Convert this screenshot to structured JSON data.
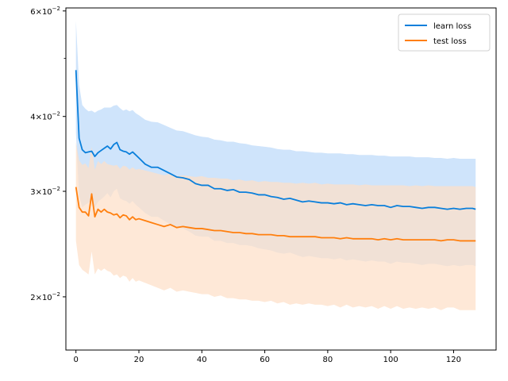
{
  "chart_data": {
    "type": "line",
    "title": "",
    "xlabel": "",
    "ylabel": "",
    "y_scale": "log",
    "xlim": [
      -3.2,
      133.5
    ],
    "ylim": [
      0.0163,
      0.0607
    ],
    "x_ticks": [
      0,
      20,
      40,
      60,
      80,
      100,
      120
    ],
    "x_tick_labels": [
      "0",
      "20",
      "40",
      "60",
      "80",
      "100",
      "120"
    ],
    "y_major_ticks": [
      {
        "value": 0.02,
        "mantissa": "2",
        "base": "10",
        "exp": "−2"
      },
      {
        "value": 0.03,
        "mantissa": "3",
        "base": "10",
        "exp": "−2"
      },
      {
        "value": 0.04,
        "mantissa": "4",
        "base": "10",
        "exp": "−2"
      },
      {
        "value": 0.06,
        "mantissa": "6",
        "base": "10",
        "exp": "−2"
      }
    ],
    "y_minor_ticks": [
      0.05
    ],
    "legend_position": "top-right",
    "grid": false,
    "x": [
      0,
      1,
      2,
      3,
      4,
      5,
      6,
      7,
      8,
      9,
      10,
      11,
      12,
      13,
      14,
      15,
      16,
      17,
      18,
      19,
      20,
      22,
      24,
      26,
      28,
      30,
      32,
      34,
      36,
      38,
      40,
      42,
      44,
      46,
      48,
      50,
      52,
      54,
      56,
      58,
      60,
      62,
      64,
      66,
      68,
      70,
      72,
      74,
      76,
      78,
      80,
      82,
      84,
      86,
      88,
      90,
      92,
      94,
      96,
      98,
      100,
      102,
      104,
      106,
      108,
      110,
      112,
      114,
      116,
      118,
      120,
      122,
      124,
      126,
      127
    ],
    "series": [
      {
        "name": "learn loss",
        "color": "#0a7fdb",
        "band_color": "#cfe4fb",
        "mean": [
          0.0478,
          0.0368,
          0.0352,
          0.0348,
          0.0349,
          0.035,
          0.0343,
          0.0348,
          0.0351,
          0.0354,
          0.0357,
          0.0353,
          0.0359,
          0.0362,
          0.0352,
          0.035,
          0.0349,
          0.0346,
          0.0349,
          0.0345,
          0.0341,
          0.0333,
          0.0329,
          0.0329,
          0.0325,
          0.0321,
          0.0317,
          0.0316,
          0.0314,
          0.0309,
          0.0307,
          0.0307,
          0.0303,
          0.0303,
          0.0301,
          0.0302,
          0.0299,
          0.0299,
          0.0298,
          0.0296,
          0.0296,
          0.0294,
          0.0293,
          0.0291,
          0.0292,
          0.029,
          0.0288,
          0.0289,
          0.0288,
          0.0287,
          0.0287,
          0.0286,
          0.0287,
          0.0285,
          0.0286,
          0.0285,
          0.0284,
          0.0285,
          0.0284,
          0.0284,
          0.0282,
          0.0284,
          0.0283,
          0.0283,
          0.0282,
          0.0281,
          0.0282,
          0.0282,
          0.0281,
          0.028,
          0.0281,
          0.028,
          0.0281,
          0.0281,
          0.028
        ],
        "upper": [
          0.0578,
          0.0452,
          0.0418,
          0.0412,
          0.0408,
          0.0409,
          0.0406,
          0.0409,
          0.0411,
          0.0414,
          0.0414,
          0.0414,
          0.0417,
          0.0418,
          0.0413,
          0.0409,
          0.0411,
          0.0408,
          0.041,
          0.0405,
          0.0402,
          0.0395,
          0.0392,
          0.0391,
          0.0387,
          0.0383,
          0.0379,
          0.0378,
          0.0375,
          0.0372,
          0.037,
          0.0369,
          0.0366,
          0.0365,
          0.0363,
          0.0363,
          0.0361,
          0.036,
          0.0358,
          0.0357,
          0.0356,
          0.0355,
          0.0353,
          0.0352,
          0.0352,
          0.035,
          0.035,
          0.0349,
          0.0348,
          0.0348,
          0.0347,
          0.0347,
          0.0347,
          0.0346,
          0.0346,
          0.0345,
          0.0345,
          0.0345,
          0.0344,
          0.0344,
          0.0343,
          0.0343,
          0.0343,
          0.0343,
          0.0342,
          0.0342,
          0.0342,
          0.0341,
          0.0341,
          0.034,
          0.0341,
          0.034,
          0.034,
          0.034,
          0.034
        ],
        "lower": [
          0.0375,
          0.0295,
          0.0282,
          0.0285,
          0.0287,
          0.0289,
          0.0282,
          0.0288,
          0.0291,
          0.0294,
          0.0298,
          0.0293,
          0.03,
          0.0303,
          0.0292,
          0.029,
          0.0289,
          0.0286,
          0.0289,
          0.0285,
          0.0282,
          0.0276,
          0.0272,
          0.0272,
          0.0268,
          0.0264,
          0.0261,
          0.026,
          0.0257,
          0.0253,
          0.0252,
          0.0252,
          0.0248,
          0.0248,
          0.0246,
          0.0246,
          0.0244,
          0.0244,
          0.0243,
          0.0241,
          0.024,
          0.0239,
          0.0237,
          0.0236,
          0.0237,
          0.0235,
          0.0233,
          0.0234,
          0.0233,
          0.0232,
          0.0232,
          0.0231,
          0.0232,
          0.023,
          0.0231,
          0.023,
          0.0229,
          0.023,
          0.0229,
          0.0229,
          0.0227,
          0.0229,
          0.0228,
          0.0228,
          0.0227,
          0.0226,
          0.0227,
          0.0227,
          0.0226,
          0.0225,
          0.0226,
          0.0225,
          0.0226,
          0.0226,
          0.0225
        ]
      },
      {
        "name": "test loss",
        "color": "#ff7f0e",
        "band_color": "#fddfc8",
        "mean": [
          0.0305,
          0.0282,
          0.0277,
          0.0277,
          0.0273,
          0.0297,
          0.0272,
          0.028,
          0.0277,
          0.028,
          0.0277,
          0.0276,
          0.0274,
          0.0275,
          0.0271,
          0.0274,
          0.0273,
          0.0269,
          0.0272,
          0.0269,
          0.027,
          0.0268,
          0.0266,
          0.0264,
          0.0262,
          0.0264,
          0.0261,
          0.0262,
          0.0261,
          0.026,
          0.026,
          0.0259,
          0.0258,
          0.0258,
          0.0257,
          0.0256,
          0.0256,
          0.0255,
          0.0255,
          0.0254,
          0.0254,
          0.0254,
          0.0253,
          0.0253,
          0.0252,
          0.0252,
          0.0252,
          0.0252,
          0.0252,
          0.0251,
          0.0251,
          0.0251,
          0.025,
          0.0251,
          0.025,
          0.025,
          0.025,
          0.025,
          0.0249,
          0.025,
          0.0249,
          0.025,
          0.0249,
          0.0249,
          0.0249,
          0.0249,
          0.0249,
          0.0249,
          0.0248,
          0.0249,
          0.0249,
          0.0248,
          0.0248,
          0.0248,
          0.0248
        ],
        "upper": [
          0.0362,
          0.0338,
          0.0332,
          0.0334,
          0.0328,
          0.0356,
          0.0326,
          0.0337,
          0.0333,
          0.0337,
          0.0333,
          0.0332,
          0.0331,
          0.0332,
          0.0327,
          0.0331,
          0.033,
          0.0326,
          0.0329,
          0.0326,
          0.0327,
          0.0325,
          0.0323,
          0.0321,
          0.0319,
          0.0321,
          0.0318,
          0.0319,
          0.0318,
          0.0317,
          0.0318,
          0.0316,
          0.0316,
          0.0315,
          0.0315,
          0.0313,
          0.0314,
          0.0312,
          0.0313,
          0.0311,
          0.0312,
          0.0311,
          0.0311,
          0.031,
          0.031,
          0.0309,
          0.031,
          0.0309,
          0.031,
          0.0308,
          0.0309,
          0.0308,
          0.0308,
          0.0308,
          0.0308,
          0.0307,
          0.0308,
          0.0307,
          0.0307,
          0.0307,
          0.0307,
          0.0307,
          0.0307,
          0.0306,
          0.0307,
          0.0306,
          0.0307,
          0.0306,
          0.0306,
          0.0306,
          0.0306,
          0.0306,
          0.0306,
          0.0306,
          0.0305
        ],
        "lower": [
          0.0248,
          0.0226,
          0.0222,
          0.022,
          0.0218,
          0.0238,
          0.0218,
          0.0223,
          0.0221,
          0.0223,
          0.0221,
          0.022,
          0.0217,
          0.0218,
          0.0215,
          0.0217,
          0.0216,
          0.0212,
          0.0215,
          0.0212,
          0.0213,
          0.0211,
          0.0209,
          0.0207,
          0.0205,
          0.0207,
          0.0204,
          0.0205,
          0.0204,
          0.0203,
          0.0202,
          0.0202,
          0.02,
          0.0201,
          0.0199,
          0.0199,
          0.0198,
          0.0198,
          0.0197,
          0.0197,
          0.0196,
          0.0197,
          0.0195,
          0.0196,
          0.0194,
          0.0195,
          0.0194,
          0.0195,
          0.0194,
          0.0194,
          0.0193,
          0.0194,
          0.0192,
          0.0194,
          0.0192,
          0.0193,
          0.0192,
          0.0193,
          0.0191,
          0.0193,
          0.0191,
          0.0193,
          0.0191,
          0.0192,
          0.0191,
          0.0192,
          0.0191,
          0.0192,
          0.019,
          0.0192,
          0.0192,
          0.019,
          0.019,
          0.019,
          0.019
        ]
      }
    ]
  }
}
